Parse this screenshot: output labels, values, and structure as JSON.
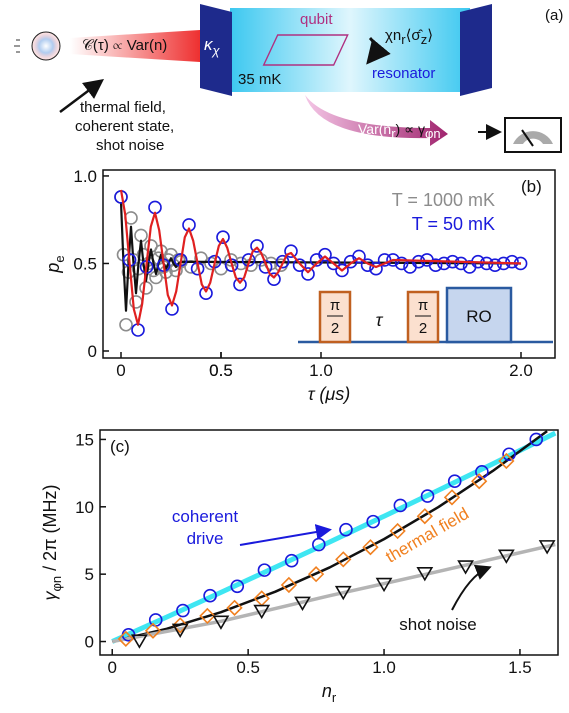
{
  "diagram": {
    "panel_label": "(a)",
    "source_text": "𝒞(τ) ∝ Var(n)",
    "kappa": "κ",
    "kappa_sub": "χ",
    "temperature": "35 mK",
    "qubit": "qubit",
    "coupling": "χn",
    "coupling_sub": "r",
    "coupling_rest": "⟨σ̂",
    "coupling_sub2": "z",
    "coupling_end": "⟩",
    "resonator": "resonator",
    "var_text": "Var(n",
    "var_sub": "r",
    "var_rest": ") ∝ γ",
    "var_sub2": "φn",
    "sources": [
      "thermal field,",
      "coherent state,",
      "shot noise"
    ]
  },
  "chart_data": [
    {
      "type": "scatter",
      "panel_label": "(b)",
      "xlabel": "τ (μs)",
      "ylabel": "p",
      "ylabel_sub": "e",
      "xlim": [
        -0.09,
        2.17
      ],
      "ylim": [
        -0.04,
        1.034
      ],
      "xticks": [
        0,
        0.5,
        {
          "value": 1,
          "label": "1.0"
        },
        0.5,
        {
          "value": 2,
          "label": "2.0"
        }
      ],
      "yticks": [
        0,
        0.5,
        {
          "value": 1,
          "label": "1.0"
        }
      ],
      "legend": "upper right",
      "pulse_labels": {
        "pi": "π",
        "two": "2",
        "tau": "τ",
        "readout": "RO"
      },
      "series": [
        {
          "name": "T = 1000 mK",
          "color": "#8c8c8c",
          "mode": "markers",
          "marker": "circle",
          "x": [
            0,
            0.0125,
            0.025,
            0.0375,
            0.05,
            0.0625,
            0.075,
            0.0875,
            0.1,
            0.1125,
            0.125,
            0.1375,
            0.15,
            0.1625,
            0.175,
            0.1875,
            0.2,
            0.2125,
            0.225,
            0.2375,
            0.25,
            0.2625,
            0.275,
            0.2875,
            0.3,
            0.35,
            0.4,
            0.45,
            0.5,
            0.55,
            0.6,
            0.65,
            0.7,
            0.75,
            0.8
          ],
          "values": [
            0.88,
            0.55,
            0.15,
            0.45,
            0.76,
            0.52,
            0.28,
            0.47,
            0.66,
            0.55,
            0.36,
            0.5,
            0.6,
            0.46,
            0.42,
            0.53,
            0.57,
            0.48,
            0.45,
            0.52,
            0.55,
            0.49,
            0.46,
            0.52,
            0.51,
            0.48,
            0.53,
            0.5,
            0.47,
            0.52,
            0.5,
            0.49,
            0.52,
            0.5,
            0.49
          ]
        },
        {
          "color": "#111111",
          "mode": "line",
          "x": [
            0,
            0.0125,
            0.025,
            0.0375,
            0.05,
            0.0625,
            0.075,
            0.0875,
            0.1,
            0.1125,
            0.125,
            0.1375,
            0.15,
            0.1625,
            0.175,
            0.1875,
            0.2,
            0.2125,
            0.225,
            0.2375,
            0.25,
            0.2625,
            0.275,
            0.2875,
            0.3,
            2.0
          ],
          "values": [
            0.85,
            0.5,
            0.23,
            0.5,
            0.71,
            0.5,
            0.33,
            0.5,
            0.63,
            0.5,
            0.4,
            0.5,
            0.58,
            0.5,
            0.44,
            0.5,
            0.55,
            0.5,
            0.47,
            0.5,
            0.53,
            0.5,
            0.48,
            0.5,
            0.51,
            0.5
          ]
        },
        {
          "name": "T = 50 mK",
          "color": "#1a1adc",
          "mode": "markers",
          "marker": "circle",
          "x": [
            0,
            0.043,
            0.085,
            0.128,
            0.17,
            0.213,
            0.255,
            0.298,
            0.34,
            0.383,
            0.425,
            0.468,
            0.51,
            0.553,
            0.595,
            0.638,
            0.68,
            0.723,
            0.765,
            0.808,
            0.85,
            0.893,
            0.935,
            0.978,
            1.02,
            1.063,
            1.105,
            1.148,
            1.19,
            1.233,
            1.275,
            1.318,
            1.36,
            1.403,
            1.445,
            1.488,
            1.53,
            1.573,
            1.615,
            1.658,
            1.7,
            1.743,
            1.785,
            1.828,
            1.87,
            1.913,
            1.955,
            1.998
          ],
          "values": [
            0.88,
            0.52,
            0.12,
            0.48,
            0.82,
            0.49,
            0.24,
            0.52,
            0.72,
            0.47,
            0.33,
            0.51,
            0.65,
            0.49,
            0.38,
            0.52,
            0.6,
            0.48,
            0.41,
            0.51,
            0.57,
            0.49,
            0.44,
            0.52,
            0.55,
            0.5,
            0.46,
            0.51,
            0.54,
            0.49,
            0.47,
            0.52,
            0.52,
            0.5,
            0.48,
            0.51,
            0.52,
            0.49,
            0.5,
            0.51,
            0.5,
            0.48,
            0.51,
            0.5,
            0.49,
            0.5,
            0.51,
            0.5
          ]
        },
        {
          "color": "#e02020",
          "mode": "line",
          "x": [
            0,
            0.021,
            0.043,
            0.064,
            0.085,
            0.106,
            0.128,
            0.149,
            0.17,
            0.191,
            0.213,
            0.234,
            0.255,
            0.276,
            0.298,
            0.319,
            0.34,
            0.361,
            0.383,
            0.404,
            0.425,
            0.446,
            0.468,
            0.489,
            0.51,
            0.531,
            0.553,
            0.574,
            0.595,
            0.616,
            0.638,
            0.659,
            0.68,
            0.701,
            0.723,
            0.744,
            0.765,
            0.786,
            0.808,
            0.829,
            0.85,
            0.893,
            0.935,
            0.978,
            1.02,
            1.063,
            1.105,
            1.148,
            1.19,
            1.233,
            1.275,
            1.318,
            1.36,
            2.0
          ],
          "values": [
            0.92,
            0.78,
            0.5,
            0.24,
            0.15,
            0.27,
            0.5,
            0.71,
            0.79,
            0.69,
            0.5,
            0.32,
            0.26,
            0.34,
            0.5,
            0.65,
            0.7,
            0.63,
            0.5,
            0.38,
            0.34,
            0.39,
            0.5,
            0.6,
            0.64,
            0.59,
            0.5,
            0.42,
            0.39,
            0.42,
            0.5,
            0.57,
            0.59,
            0.56,
            0.5,
            0.44,
            0.42,
            0.45,
            0.5,
            0.55,
            0.56,
            0.5,
            0.45,
            0.5,
            0.54,
            0.5,
            0.46,
            0.5,
            0.53,
            0.5,
            0.48,
            0.5,
            0.52,
            0.5
          ]
        }
      ]
    },
    {
      "type": "scatter",
      "panel_label": "(c)",
      "xlabel": "n",
      "xlabel_sub": "r",
      "ylabel": "γ",
      "ylabel_sub": "φn",
      "ylabel_rest": " / 2π (MHz)",
      "xlim": [
        -0.045,
        1.64
      ],
      "ylim": [
        -1.0,
        15.7
      ],
      "xticks": [
        0,
        0.5,
        {
          "value": 1,
          "label": "1.0"
        },
        1.5
      ],
      "yticks": [
        0,
        5,
        10,
        15
      ],
      "annotations": [
        {
          "text": [
            "coherent",
            "drive"
          ],
          "color": "#1a1adc"
        },
        {
          "text": [
            "thermal field"
          ],
          "color": "#f08020"
        },
        {
          "text": [
            "shot noise"
          ],
          "color": "#111111"
        }
      ],
      "series": [
        {
          "color": "#3ee6f2",
          "mode": "line",
          "width": 5,
          "x": [
            0,
            0.2,
            0.4,
            0.6,
            0.8,
            1,
            1.2,
            1.4,
            1.63
          ],
          "values": [
            0,
            1.81,
            3.65,
            5.51,
            7.39,
            9.3,
            11.23,
            13.19,
            15.47
          ]
        },
        {
          "color": "#111111",
          "mode": "line",
          "width": 2.5,
          "x": [
            0,
            0.2,
            0.4,
            0.6,
            0.8,
            1,
            1.2,
            1.4,
            1.6
          ],
          "values": [
            0,
            0.94,
            2.18,
            3.7,
            5.5,
            7.6,
            9.98,
            12.66,
            15.62
          ]
        },
        {
          "color": "#b4b4b4",
          "mode": "line",
          "width": 3.5,
          "x": [
            0,
            0.4,
            0.8,
            1.2,
            1.63
          ],
          "values": [
            0,
            1.5,
            3.4,
            5.2,
            7.2
          ]
        },
        {
          "color": "#1a1adc",
          "mode": "markers",
          "marker": "circle",
          "x": [
            0.06,
            0.16,
            0.26,
            0.36,
            0.46,
            0.56,
            0.66,
            0.76,
            0.86,
            0.96,
            1.06,
            1.16,
            1.26,
            1.36,
            1.46,
            1.56
          ],
          "values": [
            0.5,
            1.6,
            2.3,
            3.4,
            4.1,
            5.3,
            6.0,
            7.2,
            8.3,
            8.9,
            10.1,
            10.8,
            11.9,
            12.6,
            13.9,
            15.0
          ]
        },
        {
          "color": "#f08020",
          "mode": "markers",
          "marker": "diamond",
          "x": [
            0.05,
            0.15,
            0.25,
            0.35,
            0.45,
            0.55,
            0.65,
            0.75,
            0.85,
            0.95,
            1.05,
            1.15,
            1.25,
            1.35,
            1.45
          ],
          "values": [
            0.2,
            0.8,
            1.2,
            1.9,
            2.5,
            3.2,
            4.2,
            5.0,
            6.1,
            7.0,
            8.2,
            9.3,
            10.7,
            11.9,
            13.4
          ]
        },
        {
          "color": "#111111",
          "mode": "markers",
          "marker": "triangle",
          "x": [
            0.1,
            0.25,
            0.4,
            0.55,
            0.7,
            0.85,
            1.0,
            1.15,
            1.3,
            1.45,
            1.6
          ],
          "values": [
            0.1,
            0.9,
            1.5,
            2.3,
            2.9,
            3.7,
            4.3,
            5.1,
            5.6,
            6.4,
            7.1
          ]
        }
      ]
    }
  ]
}
